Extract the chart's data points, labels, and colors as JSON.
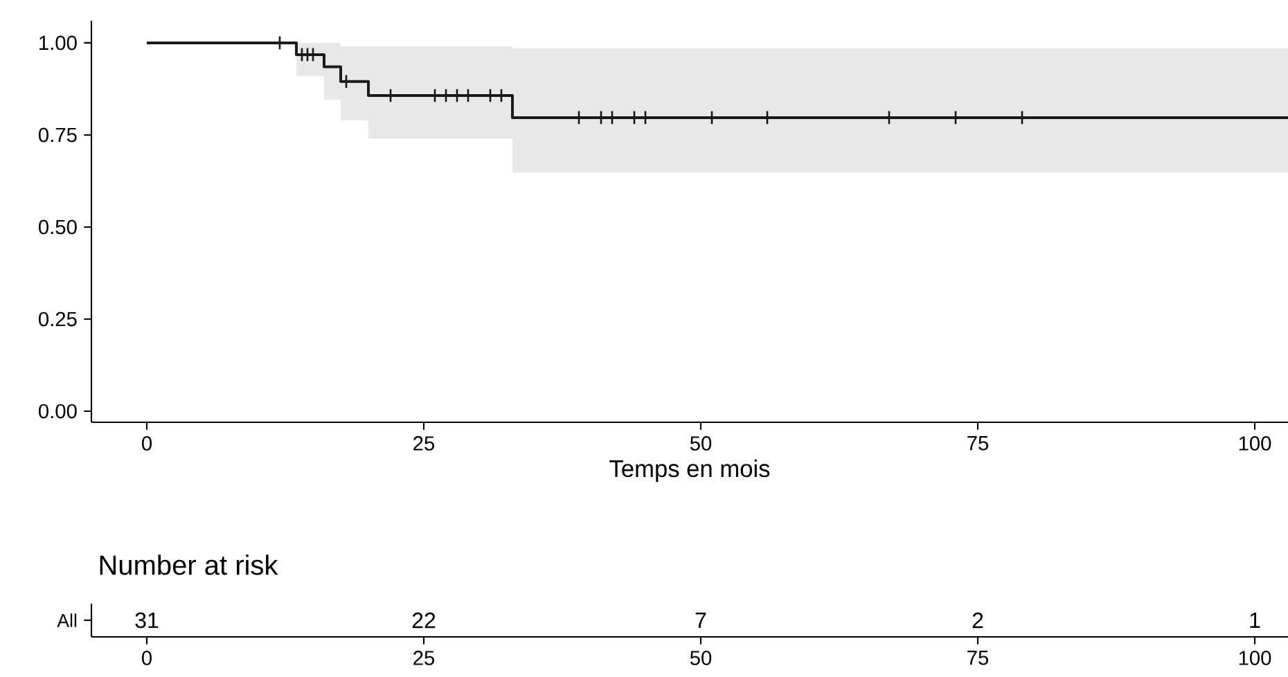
{
  "chart_data": [
    {
      "type": "step",
      "xlabel": "Temps en mois",
      "xlim": [
        -5,
        103
      ],
      "ylim": [
        -0.03,
        1.06
      ],
      "xticks": [
        0,
        25,
        50,
        75,
        100
      ],
      "yticks": [
        {
          "value": 0,
          "label": "0.00"
        },
        {
          "value": 0.25,
          "label": "0.25"
        },
        {
          "value": 0.5,
          "label": "0.50"
        },
        {
          "value": 0.75,
          "label": "0.75"
        },
        {
          "value": 1,
          "label": "1.00"
        }
      ],
      "grid": false,
      "line_style": "solid",
      "series": [
        {
          "type": "step",
          "color": "#1a1a1a",
          "x": [
            0,
            13.5,
            16,
            17.5,
            20,
            33,
            103
          ],
          "values": [
            1,
            0.968,
            0.935,
            0.895,
            0.857,
            0.797,
            0.797
          ],
          "lower": [
            1,
            0.91,
            0.846,
            0.79,
            0.74,
            0.648,
            0.648
          ],
          "upper": [
            1,
            1,
            1,
            0.99,
            0.99,
            0.985,
            0.985
          ]
        },
        {
          "type": "scatter",
          "color": "#1a1a1a",
          "marker": "cross",
          "x": [
            12,
            14,
            14.5,
            15,
            18,
            22,
            26,
            27,
            28,
            29,
            31,
            32,
            39,
            41,
            42,
            44,
            45,
            51,
            56,
            67,
            73,
            79
          ],
          "values": [
            1,
            0.968,
            0.968,
            0.968,
            0.895,
            0.857,
            0.857,
            0.857,
            0.857,
            0.857,
            0.857,
            0.857,
            0.797,
            0.797,
            0.797,
            0.797,
            0.797,
            0.797,
            0.797,
            0.797,
            0.797,
            0.797
          ]
        }
      ]
    },
    {
      "type": "heatmap",
      "title": "Number at risk",
      "categories": [
        "0",
        "25",
        "50",
        "75",
        "100"
      ],
      "y_categories": [
        "All"
      ],
      "cells": [
        [
          31,
          22,
          7,
          2,
          1
        ]
      ],
      "data_labels": true
    }
  ]
}
